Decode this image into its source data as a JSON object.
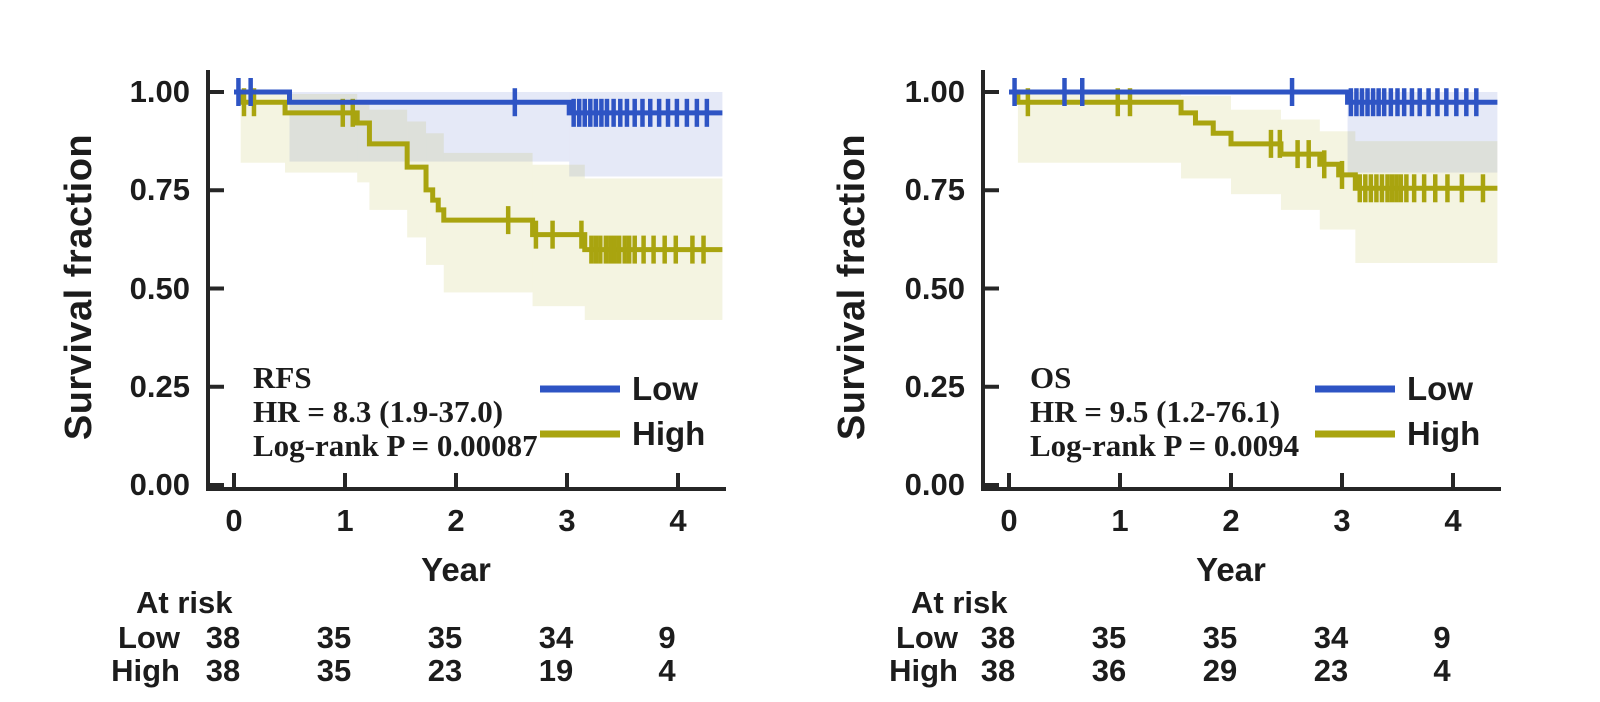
{
  "shared": {
    "ylabel": "Survival fraction",
    "xlabel": "Year",
    "at_risk_label": "At risk",
    "x_ticks": [
      "0",
      "1",
      "2",
      "3",
      "4"
    ],
    "y_ticks": [
      "1.00",
      "0.75",
      "0.50",
      "0.25",
      "0.00"
    ],
    "colors": {
      "low": "#2e54c4",
      "high": "#a9a40f",
      "low_band": "rgba(72,102,198,0.14)",
      "high_band": "rgba(172,167,22,0.13)",
      "axis": "#262626",
      "text": "#1c1c1c"
    }
  },
  "chart_data": [
    {
      "type": "km_survival",
      "title": "RFS",
      "hr_text": "HR = 8.3 (1.9-37.0)",
      "logrank_text": "Log-rank P = 0.00087",
      "xlabel": "Year",
      "ylabel": "Survival fraction",
      "xlim": [
        0,
        4.4
      ],
      "ylim": [
        0.0,
        1.0
      ],
      "legend_position": "lower right",
      "series": [
        {
          "name": "Low",
          "color_key": "low",
          "start_value": 1.0,
          "drops": [
            [
              0.5,
              0.974
            ],
            [
              3.02,
              0.947
            ]
          ],
          "end_x": 4.4,
          "censor_times": [
            0.04,
            0.15,
            2.53,
            3.06,
            3.11,
            3.16,
            3.21,
            3.26,
            3.31,
            3.36,
            3.42,
            3.48,
            3.54,
            3.61,
            3.68,
            3.75,
            3.83,
            3.91,
            3.99,
            4.08,
            4.17,
            4.26
          ],
          "ci_band": [
            [
              0.5,
              3.02,
              0.823,
              1.0
            ],
            [
              3.02,
              4.4,
              0.785,
              1.0
            ]
          ]
        },
        {
          "name": "High",
          "color_key": "high",
          "start_value": 1.0,
          "drops": [
            [
              0.06,
              0.974
            ],
            [
              0.46,
              0.947
            ],
            [
              1.11,
              0.921
            ],
            [
              1.22,
              0.868
            ],
            [
              1.56,
              0.809
            ],
            [
              1.73,
              0.751
            ],
            [
              1.79,
              0.725
            ],
            [
              1.84,
              0.7
            ],
            [
              1.89,
              0.674
            ],
            [
              2.69,
              0.637
            ],
            [
              3.16,
              0.599
            ]
          ],
          "end_x": 4.4,
          "censor_times": [
            0.09,
            0.18,
            0.98,
            1.07,
            2.47,
            2.72,
            2.87,
            3.13,
            3.22,
            3.26,
            3.3,
            3.35,
            3.39,
            3.43,
            3.47,
            3.52,
            3.56,
            3.61,
            3.69,
            3.78,
            3.88,
            3.98,
            4.13,
            4.23
          ],
          "ci_band": [
            [
              0.06,
              0.46,
              0.82,
              1.0
            ],
            [
              0.46,
              1.11,
              0.795,
              0.995
            ],
            [
              1.11,
              1.22,
              0.77,
              0.98
            ],
            [
              1.22,
              1.56,
              0.7,
              0.955
            ],
            [
              1.56,
              1.73,
              0.63,
              0.925
            ],
            [
              1.73,
              1.89,
              0.56,
              0.895
            ],
            [
              1.89,
              2.69,
              0.49,
              0.845
            ],
            [
              2.69,
              3.16,
              0.455,
              0.815
            ],
            [
              3.16,
              4.4,
              0.42,
              0.78
            ]
          ]
        }
      ],
      "at_risk": {
        "rows": [
          {
            "group": "Low",
            "counts": [
              "38",
              "35",
              "35",
              "34",
              "9"
            ]
          },
          {
            "group": "High",
            "counts": [
              "38",
              "35",
              "23",
              "19",
              "4"
            ]
          }
        ]
      }
    },
    {
      "type": "km_survival",
      "title": "OS",
      "hr_text": "HR = 9.5 (1.2-76.1)",
      "logrank_text": "Log-rank P = 0.0094",
      "xlabel": "Year",
      "ylabel": "Survival fraction",
      "xlim": [
        0,
        4.4
      ],
      "ylim": [
        0.0,
        1.0
      ],
      "legend_position": "lower right",
      "series": [
        {
          "name": "Low",
          "color_key": "low",
          "start_value": 1.0,
          "drops": [
            [
              3.05,
              0.974
            ]
          ],
          "end_x": 4.4,
          "censor_times": [
            0.05,
            0.5,
            0.66,
            2.55,
            3.08,
            3.13,
            3.18,
            3.23,
            3.28,
            3.33,
            3.38,
            3.44,
            3.5,
            3.56,
            3.63,
            3.7,
            3.78,
            3.86,
            3.94,
            4.03,
            4.12,
            4.21
          ],
          "ci_band": [
            [
              3.05,
              4.4,
              0.795,
              1.0
            ]
          ]
        },
        {
          "name": "High",
          "color_key": "high",
          "start_value": 1.0,
          "drops": [
            [
              0.08,
              0.974
            ],
            [
              1.55,
              0.947
            ],
            [
              1.68,
              0.921
            ],
            [
              1.84,
              0.895
            ],
            [
              2.0,
              0.868
            ],
            [
              2.45,
              0.842
            ],
            [
              2.8,
              0.816
            ],
            [
              2.97,
              0.789
            ],
            [
              3.12,
              0.755
            ]
          ],
          "end_x": 4.4,
          "censor_times": [
            0.17,
            0.98,
            1.09,
            2.36,
            2.44,
            2.6,
            2.7,
            2.84,
            3.0,
            3.16,
            3.21,
            3.26,
            3.31,
            3.36,
            3.41,
            3.45,
            3.49,
            3.53,
            3.58,
            3.65,
            3.74,
            3.84,
            3.95,
            4.08,
            4.27
          ],
          "ci_band": [
            [
              0.08,
              1.55,
              0.82,
              1.0
            ],
            [
              1.55,
              2.0,
              0.78,
              0.99
            ],
            [
              2.0,
              2.45,
              0.74,
              0.955
            ],
            [
              2.45,
              2.8,
              0.7,
              0.93
            ],
            [
              2.8,
              3.12,
              0.65,
              0.9
            ],
            [
              3.12,
              4.4,
              0.565,
              0.875
            ]
          ]
        }
      ],
      "at_risk": {
        "rows": [
          {
            "group": "Low",
            "counts": [
              "38",
              "35",
              "35",
              "34",
              "9"
            ]
          },
          {
            "group": "High",
            "counts": [
              "38",
              "36",
              "29",
              "23",
              "4"
            ]
          }
        ]
      }
    }
  ]
}
